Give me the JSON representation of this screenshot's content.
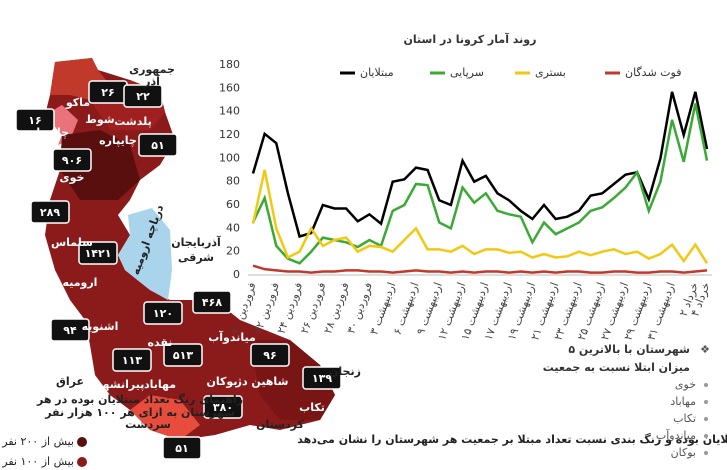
{
  "chart_data": {
    "type": "line",
    "title": "روند آمار کرونا در استان",
    "categories": [
      "۲۰ فروردین",
      null,
      "۲۲ فروردین",
      null,
      "۲۴ فروردین",
      null,
      "۲۶ فروردین",
      null,
      "۲۸ فروردین",
      null,
      "۳۰ فروردین",
      null,
      "۳ اردیبهشت",
      null,
      "۶ اردیبهشت",
      null,
      "۹ اردیبهشت",
      null,
      "۱۲ اردیبهشت",
      null,
      "۱۵ اردیبهشت",
      null,
      "۱۷ اردیبهشت",
      null,
      "۱۹ اردیبهشت",
      null,
      "۲۱ اردیبهشت",
      null,
      "۲۳ اردیبهشت",
      null,
      "۲۵ اردیبهشت",
      null,
      "۲۷ اردیبهشت",
      null,
      "۲۹ اردیبهشت",
      null,
      "۳۱ اردیبهشت",
      null,
      "۲ خرداد",
      "۴ خرداد"
    ],
    "series": [
      {
        "name": "مبتلایان",
        "color": "#000000",
        "values": [
          87,
          121,
          113,
          70,
          33,
          36,
          60,
          57,
          57,
          46,
          52,
          44,
          80,
          82,
          92,
          90,
          64,
          60,
          98,
          80,
          85,
          70,
          64,
          55,
          48,
          60,
          48,
          50,
          55,
          68,
          70,
          78,
          86,
          88,
          65,
          100,
          157,
          120,
          157,
          108
        ]
      },
      {
        "name": "سرپایی",
        "color": "#3aaa35",
        "values": [
          45,
          66,
          25,
          14,
          10,
          20,
          32,
          30,
          28,
          24,
          30,
          25,
          55,
          60,
          78,
          77,
          45,
          40,
          75,
          62,
          70,
          55,
          52,
          50,
          28,
          45,
          35,
          40,
          45,
          55,
          58,
          66,
          75,
          88,
          55,
          80,
          133,
          97,
          147,
          98
        ]
      },
      {
        "name": "بستری",
        "color": "#f2c811",
        "values": [
          44,
          90,
          40,
          15,
          20,
          40,
          25,
          30,
          32,
          20,
          25,
          24,
          20,
          30,
          40,
          22,
          22,
          20,
          25,
          18,
          22,
          22,
          19,
          20,
          15,
          18,
          15,
          16,
          20,
          17,
          20,
          22,
          18,
          20,
          14,
          18,
          26,
          12,
          26,
          10
        ]
      },
      {
        "name": "فوت شدگان",
        "color": "#c0392b",
        "values": [
          8,
          5,
          4,
          3,
          3,
          2,
          3,
          3,
          4,
          4,
          3,
          3,
          2,
          3,
          4,
          3,
          3,
          2,
          3,
          2,
          3,
          3,
          2,
          3,
          2,
          3,
          2,
          3,
          3,
          2,
          2,
          3,
          3,
          2,
          2,
          3,
          3,
          2,
          3,
          4
        ]
      }
    ],
    "ylim": [
      0,
      180
    ],
    "yticks": [
      0,
      20,
      40,
      60,
      80,
      100,
      120,
      140,
      160,
      180
    ],
    "grid": false
  },
  "map": {
    "case_badges": [
      "۲۶",
      "۲۲",
      "۱۶",
      "۵۱",
      "۹۰۶",
      "۲۸۹",
      "۱۴۲۱",
      "۴۶۸",
      "۱۲۰",
      "۹۴",
      "۱۱۳",
      "۵۱۳",
      "۹۶",
      "۱۳۹",
      "۳۸۰",
      "۵۱"
    ],
    "region_labels": [
      "جمهوری",
      "آذر",
      "ماکو",
      "شوط",
      "پلدشت",
      "چالدران",
      "چایپاره",
      "خوی",
      "سلماس",
      "ارومیه",
      "آذربایجان",
      "شرقی",
      "دریاچه ارومیه",
      "اشنویه",
      "نقده",
      "میاندوآب",
      "پیرانشهر",
      "مهاباد",
      "بوکان",
      "شاهین دژ",
      "تکاب",
      "زنجان",
      "کردستان",
      "عراق",
      "سردشت"
    ],
    "legend_title": [
      "راهنمای رنگ تعداد مبتلایان بوده در هر",
      "شهرستان به ازای هر ۱۰۰ هزار نفر"
    ],
    "legend_items": [
      "بیش از ۲۰۰ نفر",
      "بیش از ۱۰۰ نفر"
    ]
  },
  "top5": {
    "title": [
      "۵ شهرستان با بالاترین",
      "میزان ابتلا نسبت به جمعیت"
    ],
    "items": [
      "خوی",
      "مهاباد",
      "تکاب",
      "میاندوآب",
      "بوکان"
    ]
  },
  "footnote": "اعداد داخل کادر تعداد مبتلایان بوده و رنگ بندی نسبت تعداد مبتلا بر جمعیت هر شهرستان را نشان می‌دهد"
}
